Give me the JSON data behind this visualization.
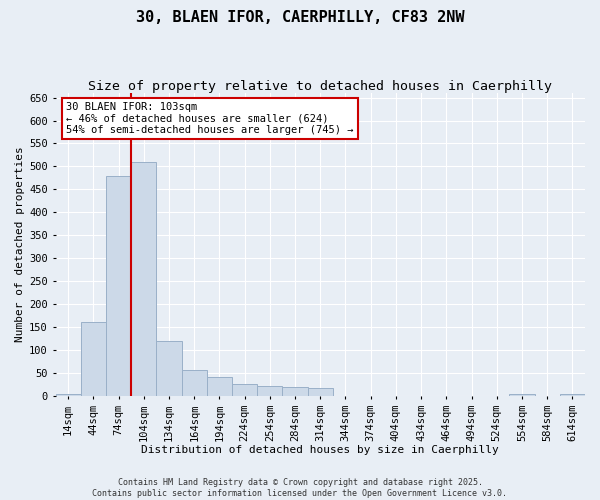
{
  "title": "30, BLAEN IFOR, CAERPHILLY, CF83 2NW",
  "subtitle": "Size of property relative to detached houses in Caerphilly",
  "xlabel": "Distribution of detached houses by size in Caerphilly",
  "ylabel": "Number of detached properties",
  "footer_line1": "Contains HM Land Registry data © Crown copyright and database right 2025.",
  "footer_line2": "Contains public sector information licensed under the Open Government Licence v3.0.",
  "bin_labels": [
    "14sqm",
    "44sqm",
    "74sqm",
    "104sqm",
    "134sqm",
    "164sqm",
    "194sqm",
    "224sqm",
    "254sqm",
    "284sqm",
    "314sqm",
    "344sqm",
    "374sqm",
    "404sqm",
    "434sqm",
    "464sqm",
    "494sqm",
    "524sqm",
    "554sqm",
    "584sqm",
    "614sqm"
  ],
  "bin_values": [
    3,
    160,
    480,
    510,
    120,
    57,
    40,
    25,
    22,
    20,
    16,
    0,
    0,
    0,
    0,
    0,
    0,
    0,
    3,
    0,
    3
  ],
  "bar_color": "#ccd9e8",
  "bar_edge_color": "#9ab0c8",
  "background_color": "#e8eef5",
  "grid_color": "#ffffff",
  "annotation_text": "30 BLAEN IFOR: 103sqm\n← 46% of detached houses are smaller (624)\n54% of semi-detached houses are larger (745) →",
  "annotation_box_color": "#ffffff",
  "annotation_border_color": "#cc0000",
  "vline_x": 2.5,
  "vline_color": "#cc0000",
  "ylim": [
    0,
    660
  ],
  "yticks": [
    0,
    50,
    100,
    150,
    200,
    250,
    300,
    350,
    400,
    450,
    500,
    550,
    600,
    650
  ],
  "title_fontsize": 11,
  "subtitle_fontsize": 9.5,
  "axis_fontsize": 8,
  "tick_fontsize": 7.5,
  "annotation_fontsize": 7.5,
  "fig_width": 6.0,
  "fig_height": 5.0
}
